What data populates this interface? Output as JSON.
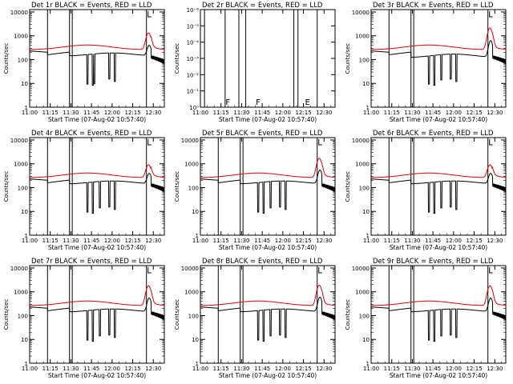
{
  "colors": {
    "events": "#000000",
    "lld": "#e00000",
    "background": "#ffffff"
  },
  "common": {
    "ylabel": "Counts/sec",
    "xlabel": "Start Time (07-Aug-02 10:57:40)",
    "xticks": [
      "11:00",
      "11:15",
      "11:30",
      "11:45",
      "12:00",
      "12:15",
      "12:30"
    ],
    "xtick_minutes": [
      0,
      15,
      30,
      45,
      60,
      75,
      90
    ],
    "xrange_minutes": [
      0,
      98
    ],
    "yticks_main": [
      "1",
      "10",
      "100",
      "1000",
      "10000"
    ],
    "ylog_range_main": [
      0,
      4.1
    ],
    "yticks_det2": [
      "10⁰",
      "10⁻¹",
      "10⁻²",
      "10⁻³",
      "10⁻⁴",
      "10⁻⁵",
      "10⁻⁶"
    ],
    "ylog_range_det2": [
      0,
      -6
    ]
  },
  "chart_data": [
    {
      "type": "line",
      "title": "Det 1r BLACK = Events, RED = LLD",
      "empty": false,
      "xlabel": "Start Time (07-Aug-02 10:57:40)",
      "ylabel": "Counts/sec",
      "gap_lines_min": [
        13,
        29,
        31,
        85
      ],
      "segment_labels": [],
      "lld_peak": 1400,
      "events_base": 160,
      "events_peak": 500,
      "dips_min": [
        42,
        46,
        47,
        58,
        62
      ]
    },
    {
      "type": "line",
      "title": "Det 2r BLACK = Events, RED = LLD",
      "empty": true,
      "xlabel": "Start Time (07-Aug-02 10:57:40)",
      "ylabel": "Counts/sec",
      "gap_lines_min": [
        3,
        18,
        28,
        33,
        68,
        71,
        85
      ],
      "segment_labels": [
        {
          "label": "F",
          "min": 20
        },
        {
          "label": "F",
          "min": 42
        },
        {
          "label": "E",
          "min": 78
        }
      ]
    },
    {
      "type": "line",
      "title": "Det 3r BLACK = Events, RED = LLD",
      "empty": false,
      "xlabel": "Start Time (07-Aug-02 10:57:40)",
      "ylabel": "Counts/sec",
      "gap_lines_min": [
        13,
        29,
        31,
        85
      ],
      "segment_labels": [],
      "lld_peak": 2200,
      "events_base": 140,
      "events_peak": 750,
      "dips_min": [
        42,
        46,
        51,
        58,
        62
      ]
    },
    {
      "type": "line",
      "title": "Det 4r BLACK = Events, RED = LLD",
      "empty": false,
      "xlabel": "Start Time (07-Aug-02 10:57:40)",
      "ylabel": "Counts/sec",
      "gap_lines_min": [
        13,
        29,
        31,
        85
      ],
      "segment_labels": [],
      "lld_peak": 1000,
      "events_base": 160,
      "events_peak": 500,
      "dips_min": [
        42,
        46,
        51,
        58,
        62
      ]
    },
    {
      "type": "line",
      "title": "Det 5r BLACK = Events, RED = LLD",
      "empty": false,
      "xlabel": "Start Time (07-Aug-02 10:57:40)",
      "ylabel": "Counts/sec",
      "gap_lines_min": [
        13,
        29,
        31,
        85
      ],
      "segment_labels": [],
      "lld_peak": 1800,
      "events_base": 160,
      "events_peak": 650,
      "dips_min": [
        42,
        46,
        51,
        58,
        62
      ]
    },
    {
      "type": "line",
      "title": "Det 6r BLACK = Events, RED = LLD",
      "empty": false,
      "xlabel": "Start Time (07-Aug-02 10:57:40)",
      "ylabel": "Counts/sec",
      "gap_lines_min": [
        13,
        29,
        31,
        85
      ],
      "segment_labels": [],
      "lld_peak": 1000,
      "events_base": 160,
      "events_peak": 500,
      "dips_min": [
        42,
        46,
        51,
        58,
        62
      ]
    },
    {
      "type": "line",
      "title": "Det 7r BLACK = Events, RED = LLD",
      "empty": false,
      "xlabel": "Start Time (07-Aug-02 10:57:40)",
      "ylabel": "Counts/sec",
      "gap_lines_min": [
        13,
        29,
        31,
        85
      ],
      "segment_labels": [],
      "lld_peak": 1900,
      "events_base": 160,
      "events_peak": 650,
      "dips_min": [
        42,
        46,
        51,
        58,
        62
      ]
    },
    {
      "type": "line",
      "title": "Det 8r BLACK = Events, RED = LLD",
      "empty": false,
      "xlabel": "Start Time (07-Aug-02 10:57:40)",
      "ylabel": "Counts/sec",
      "gap_lines_min": [
        13,
        29,
        31,
        85
      ],
      "segment_labels": [],
      "lld_peak": 2000,
      "events_base": 160,
      "events_peak": 700,
      "dips_min": [
        42,
        46,
        51,
        58,
        62
      ]
    },
    {
      "type": "line",
      "title": "Det 9r BLACK = Events, RED = LLD",
      "empty": false,
      "xlabel": "Start Time (07-Aug-02 10:57:40)",
      "ylabel": "Counts/sec",
      "gap_lines_min": [
        13,
        29,
        31,
        85
      ],
      "segment_labels": [],
      "lld_peak": 1900,
      "events_base": 160,
      "events_peak": 650,
      "dips_min": [
        42,
        46,
        51,
        58,
        62
      ]
    }
  ]
}
